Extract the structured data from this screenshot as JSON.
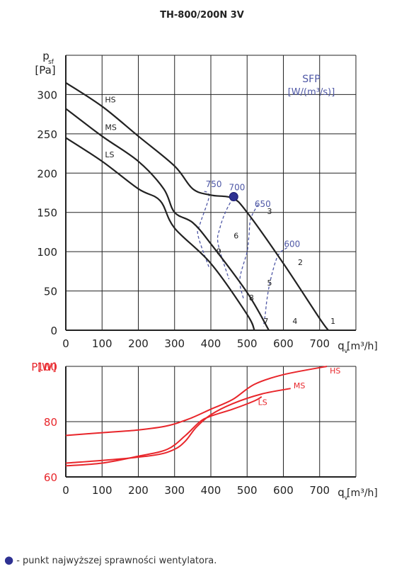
{
  "title": "TH-800/200N 3V",
  "footnote": {
    "marker": "●",
    "text": " - punkt najwyższej sprawności wentylatora."
  },
  "colors": {
    "curve": "#222222",
    "grid": "#222222",
    "sfp": "#4f58a6",
    "power": "#e8262b",
    "point": "#2e3192"
  },
  "chart_data": [
    {
      "type": "line",
      "ylabel_main": "p",
      "ylabel_sub": "sf",
      "yunit": "[Pa]",
      "xlabel_main": "q",
      "xlabel_sub": "v",
      "xunit": "[m³/h]",
      "xlim": [
        0,
        800
      ],
      "ylim": [
        0,
        350
      ],
      "x_ticks": [
        0,
        100,
        200,
        300,
        400,
        500,
        600,
        700
      ],
      "y_ticks": [
        0,
        50,
        100,
        150,
        200,
        250,
        300
      ],
      "grid": true,
      "sfp_legend": {
        "line1": "SFP",
        "line2": "[W/(m³/s)]"
      },
      "series": [
        {
          "name": "HS",
          "points": [
            [
              0,
              315
            ],
            [
              100,
              285
            ],
            [
              200,
              247
            ],
            [
              300,
              209
            ],
            [
              350,
              180
            ],
            [
              400,
              172
            ],
            [
              460,
              168
            ],
            [
              500,
              150
            ],
            [
              600,
              85
            ],
            [
              700,
              15
            ],
            [
              724,
              0
            ]
          ]
        },
        {
          "name": "MS",
          "points": [
            [
              0,
              282
            ],
            [
              100,
              247
            ],
            [
              200,
              215
            ],
            [
              270,
              180
            ],
            [
              300,
              150
            ],
            [
              350,
              137
            ],
            [
              400,
              110
            ],
            [
              500,
              48
            ],
            [
              560,
              0
            ]
          ]
        },
        {
          "name": "LS",
          "points": [
            [
              0,
              245
            ],
            [
              100,
              215
            ],
            [
              200,
              180
            ],
            [
              260,
              165
            ],
            [
              300,
              130
            ],
            [
              400,
              85
            ],
            [
              500,
              20
            ],
            [
              520,
              0
            ]
          ]
        }
      ],
      "curve_labels": [
        {
          "text": "HS",
          "x": 108,
          "y": 290
        },
        {
          "text": "MS",
          "x": 108,
          "y": 255
        },
        {
          "text": "LS",
          "x": 108,
          "y": 220
        }
      ],
      "operating_points": [
        {
          "text": "1",
          "x": 730,
          "y": 8
        },
        {
          "text": "2",
          "x": 640,
          "y": 83
        },
        {
          "text": "3",
          "x": 555,
          "y": 148
        },
        {
          "text": "4",
          "x": 625,
          "y": 8
        },
        {
          "text": "5",
          "x": 555,
          "y": 57
        },
        {
          "text": "6",
          "x": 463,
          "y": 117
        },
        {
          "text": "7",
          "x": 545,
          "y": 8
        },
        {
          "text": "8",
          "x": 505,
          "y": 38
        },
        {
          "text": "9",
          "x": 415,
          "y": 97
        }
      ],
      "sfp_curves": [
        {
          "label": "750",
          "label_x": 408,
          "label_y": 182,
          "points": [
            [
              382,
              177
            ],
            [
              395,
              170
            ],
            [
              370,
              135
            ],
            [
              365,
              120
            ],
            [
              395,
              80
            ]
          ]
        },
        {
          "label": "700",
          "label_x": 472,
          "label_y": 178,
          "points": [
            [
              460,
              168
            ],
            [
              440,
              150
            ],
            [
              425,
              130
            ],
            [
              420,
              110
            ],
            [
              450,
              65
            ]
          ]
        },
        {
          "label": "650",
          "label_x": 543,
          "label_y": 157,
          "points": [
            [
              530,
              160
            ],
            [
              510,
              142
            ],
            [
              505,
              120
            ],
            [
              500,
              100
            ],
            [
              480,
              65
            ],
            [
              490,
              40
            ]
          ]
        },
        {
          "label": "600",
          "label_x": 624,
          "label_y": 106,
          "points": [
            [
              610,
              105
            ],
            [
              585,
              95
            ],
            [
              565,
              65
            ],
            [
              555,
              40
            ],
            [
              550,
              20
            ],
            [
              545,
              5
            ]
          ]
        }
      ],
      "best_efficiency_point": {
        "x": 463,
        "y": 170
      }
    },
    {
      "type": "line",
      "ylabel": "P[W]",
      "xlabel_main": "q",
      "xlabel_sub": "v",
      "xunit": "[m³/h]",
      "xlim": [
        0,
        800
      ],
      "ylim": [
        60,
        100
      ],
      "x_ticks": [
        0,
        100,
        200,
        300,
        400,
        500,
        600,
        700
      ],
      "y_ticks": [
        60,
        80,
        100
      ],
      "grid": true,
      "series": [
        {
          "name": "HS",
          "points": [
            [
              0,
              75
            ],
            [
              100,
              76
            ],
            [
              200,
              77
            ],
            [
              280,
              78.5
            ],
            [
              340,
              81
            ],
            [
              400,
              84.5
            ],
            [
              460,
              88
            ],
            [
              520,
              93.5
            ],
            [
              600,
              97
            ],
            [
              720,
              100
            ]
          ]
        },
        {
          "name": "MS",
          "points": [
            [
              0,
              65
            ],
            [
              150,
              66.5
            ],
            [
              250,
              68
            ],
            [
              300,
              70
            ],
            [
              330,
              73
            ],
            [
              360,
              78
            ],
            [
              400,
              82.5
            ],
            [
              460,
              86.5
            ],
            [
              540,
              90
            ],
            [
              620,
              92
            ]
          ]
        },
        {
          "name": "LS",
          "points": [
            [
              0,
              64
            ],
            [
              100,
              65
            ],
            [
              200,
              67.5
            ],
            [
              280,
              70
            ],
            [
              330,
              75
            ],
            [
              370,
              80
            ],
            [
              400,
              82
            ],
            [
              460,
              84.5
            ],
            [
              520,
              87.5
            ],
            [
              540,
              89
            ]
          ]
        }
      ],
      "curve_labels": [
        {
          "text": "HS",
          "x": 728,
          "y": 97.5
        },
        {
          "text": "MS",
          "x": 628,
          "y": 92
        },
        {
          "text": "LS",
          "x": 530,
          "y": 86
        }
      ]
    }
  ]
}
